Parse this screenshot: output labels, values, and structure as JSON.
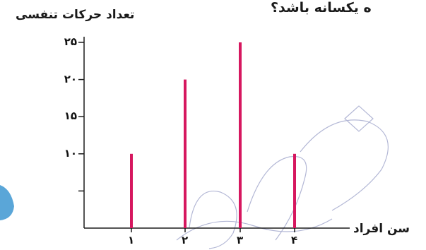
{
  "page_fragment": "ه یکسانه باشد؟",
  "colors": {
    "bar": "#d6175f",
    "axis": "#1a1a1a",
    "watermark": "#9aa0c8",
    "edge_blob": "#5aa6d8"
  },
  "chart_data": {
    "type": "bar",
    "title": "",
    "xlabel": "سن افراد",
    "ylabel": "تعداد حرکات تنفسی",
    "categories": [
      "1",
      "2",
      "3",
      "4"
    ],
    "category_tick_labels": [
      "۱",
      "۲",
      "۳",
      "۴"
    ],
    "values": [
      10,
      20,
      25,
      10
    ],
    "ylim": [
      0,
      25
    ],
    "yticks": [
      5,
      10,
      15,
      20,
      25
    ],
    "ytick_labels": [
      "",
      "۱۰",
      "۱۵",
      "۲۰",
      "۲۵"
    ],
    "grid": false,
    "legend": "none"
  }
}
